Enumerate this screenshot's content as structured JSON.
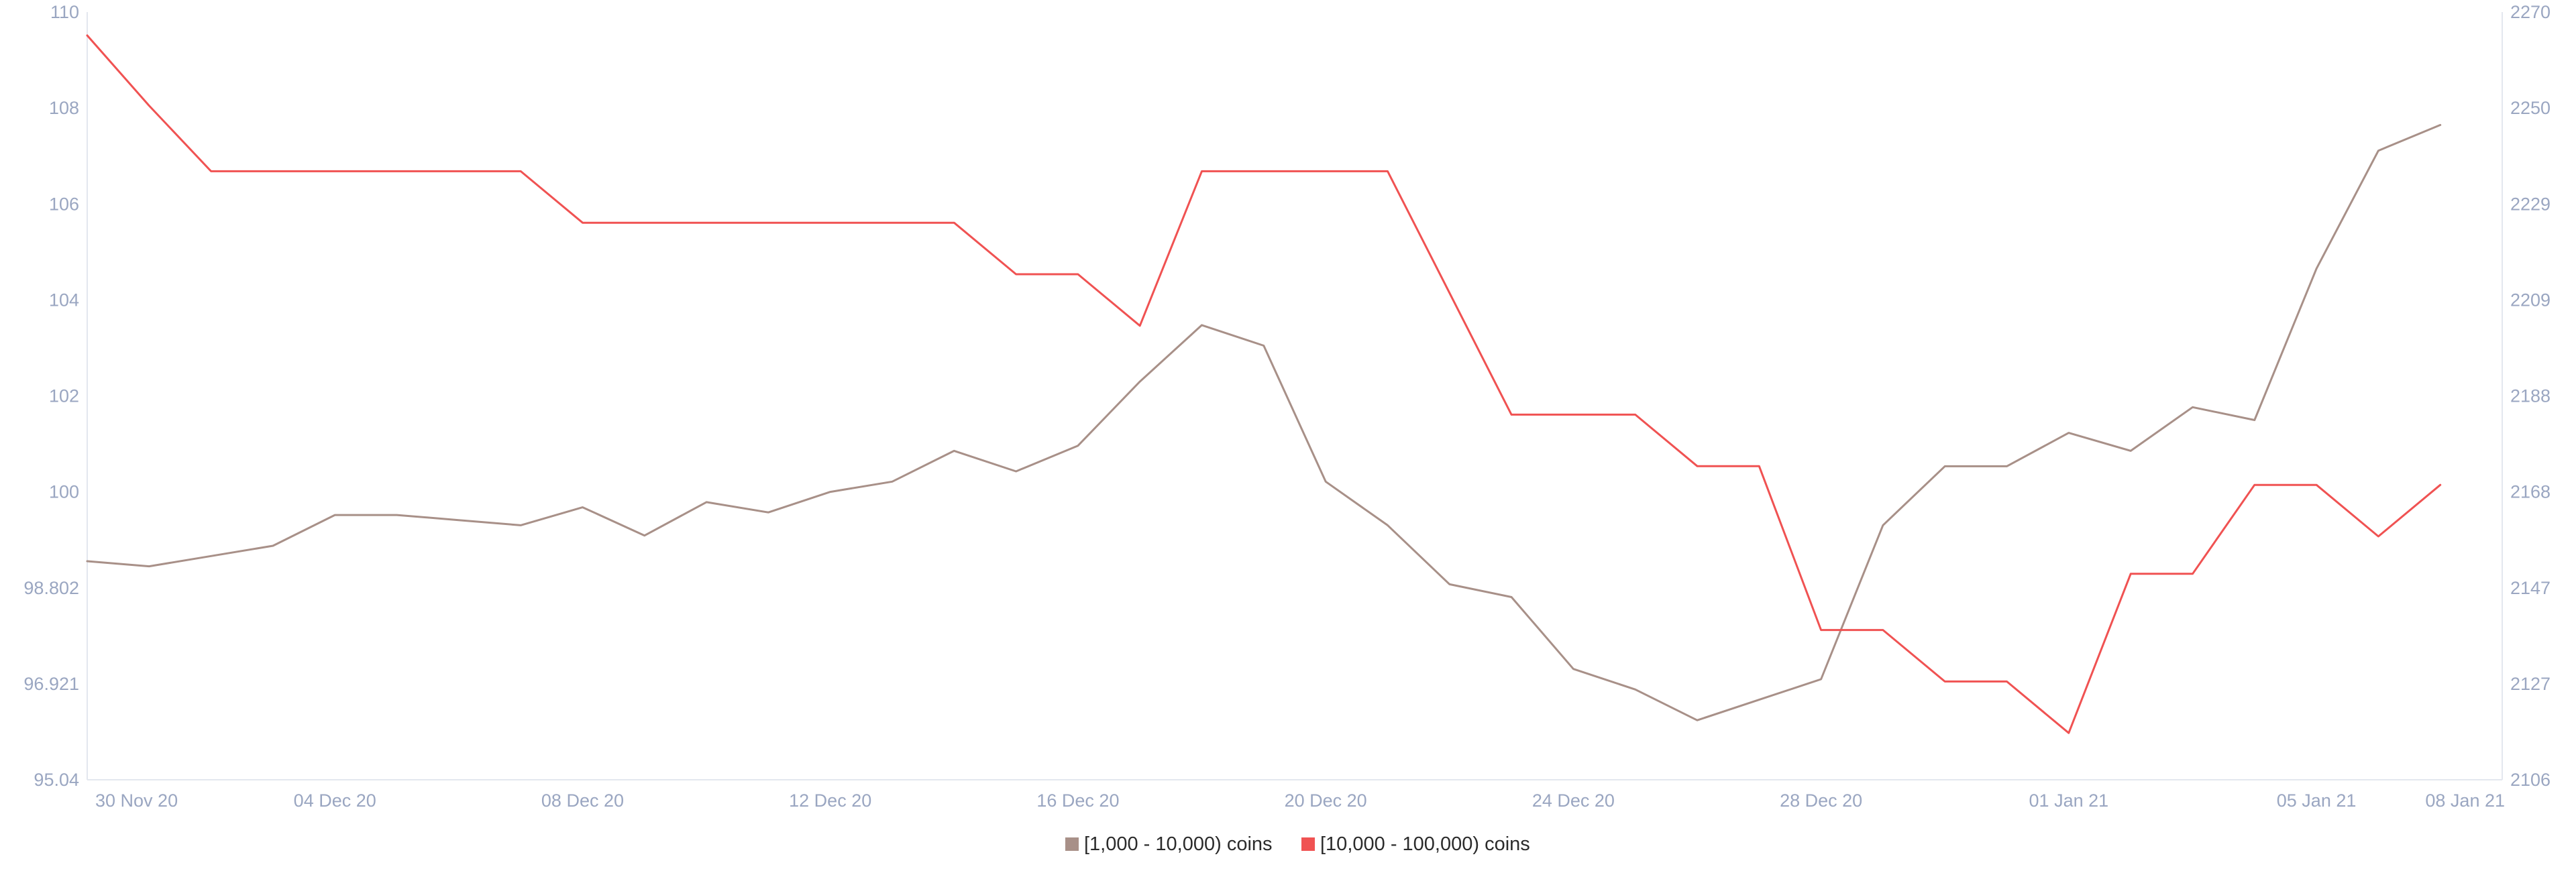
{
  "chart_data": {
    "type": "line",
    "title": "",
    "xlabel": "",
    "ylabel": "",
    "x": [
      "30 Nov 20",
      "01 Dec 20",
      "02 Dec 20",
      "03 Dec 20",
      "04 Dec 20",
      "05 Dec 20",
      "06 Dec 20",
      "07 Dec 20",
      "08 Dec 20",
      "09 Dec 20",
      "10 Dec 20",
      "11 Dec 20",
      "12 Dec 20",
      "13 Dec 20",
      "14 Dec 20",
      "15 Dec 20",
      "16 Dec 20",
      "17 Dec 20",
      "18 Dec 20",
      "19 Dec 20",
      "20 Dec 20",
      "21 Dec 20",
      "22 Dec 20",
      "23 Dec 20",
      "24 Dec 20",
      "25 Dec 20",
      "26 Dec 20",
      "27 Dec 20",
      "28 Dec 20",
      "29 Dec 20",
      "30 Dec 20",
      "31 Dec 20",
      "01 Jan 21",
      "02 Jan 21",
      "03 Jan 21",
      "04 Jan 21",
      "05 Jan 21",
      "06 Jan 21",
      "07 Jan 21"
    ],
    "x_ticks": [
      "30 Nov 20",
      "04 Dec 20",
      "08 Dec 20",
      "12 Dec 20",
      "16 Dec 20",
      "20 Dec 20",
      "24 Dec 20",
      "28 Dec 20",
      "01 Jan 21",
      "05 Jan 21",
      "08 Jan 21"
    ],
    "x_tick_index": [
      0,
      4,
      8,
      12,
      16,
      20,
      24,
      28,
      32,
      36,
      39
    ],
    "y_left": {
      "range": [
        95.04,
        110
      ],
      "ticks": [
        "110",
        "108",
        "106",
        "104",
        "102",
        "100",
        "98.802",
        "96.921",
        "95.04"
      ]
    },
    "y_right": {
      "range": [
        2106,
        2270
      ],
      "ticks": [
        "2270",
        "2250",
        "2229",
        "2209",
        "2188",
        "2168",
        "2147",
        "2127",
        "2106"
      ]
    },
    "series": [
      {
        "name": "[1,000 - 10,000) coins",
        "axis": "left",
        "color": "#a89088",
        "values": [
          99.3,
          99.2,
          99.4,
          99.6,
          100.2,
          100.2,
          100.1,
          100.0,
          100.35,
          99.8,
          100.45,
          100.25,
          100.65,
          100.85,
          101.45,
          101.05,
          101.55,
          102.8,
          103.9,
          103.5,
          100.85,
          100.0,
          98.85,
          98.6,
          97.2,
          96.8,
          96.2,
          96.6,
          97.0,
          100.0,
          101.15,
          101.15,
          101.8,
          101.45,
          102.3,
          102.05,
          105.0,
          107.3,
          107.8
        ]
      },
      {
        "name": "[10,000 - 100,000) coins",
        "axis": "right",
        "color": "#f05252",
        "values": [
          2265,
          2250,
          2236,
          2236,
          2236,
          2236,
          2236,
          2236,
          2225,
          2225,
          2225,
          2225,
          2225,
          2225,
          2225,
          2214,
          2214,
          2203,
          2236,
          2236,
          2236,
          2236,
          2210,
          2184,
          2184,
          2184,
          2173,
          2173,
          2138,
          2138,
          2127,
          2127,
          2116,
          2150,
          2150,
          2169,
          2169,
          2158,
          2169
        ]
      }
    ],
    "legend_position": "bottom-center",
    "grid": false
  }
}
